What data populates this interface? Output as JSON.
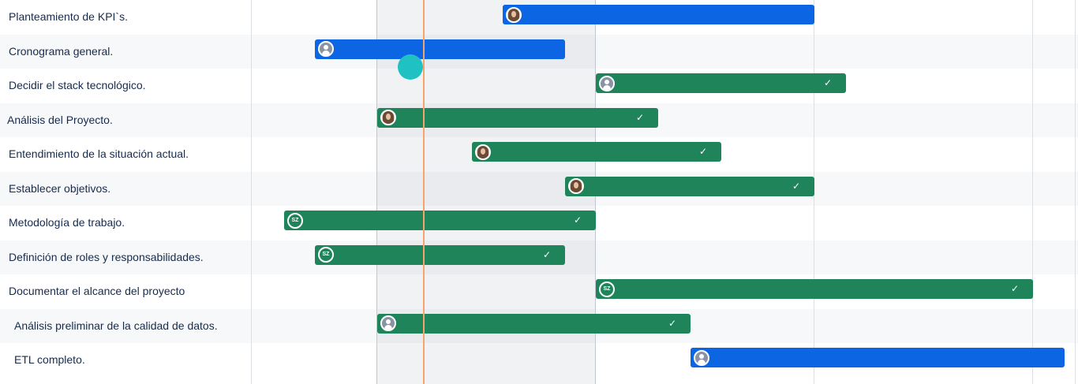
{
  "colors": {
    "in_progress": "#0c66e4",
    "done": "#1f845a",
    "today_line": "#f5a46c",
    "cursor": "#1fc1c3"
  },
  "tasks": [
    {
      "label": "Planteamiento de KPI`s.",
      "status": "in_progress",
      "assignee": "photo-avatar",
      "done": false
    },
    {
      "label": "Cronograma general.",
      "status": "in_progress",
      "assignee": "generic-avatar",
      "done": false
    },
    {
      "label": "Decidir el stack tecnológico.",
      "status": "done",
      "assignee": "generic-avatar",
      "done": true
    },
    {
      "label": "Análisis del Proyecto.",
      "status": "done",
      "assignee": "photo-avatar",
      "done": true
    },
    {
      "label": "Entendimiento de la situación actual.",
      "status": "done",
      "assignee": "photo-avatar",
      "done": true
    },
    {
      "label": "Establecer objetivos.",
      "status": "done",
      "assignee": "photo-avatar",
      "done": true
    },
    {
      "label": "Metodología de trabajo.",
      "status": "done",
      "assignee": "SZ",
      "done": true
    },
    {
      "label": "Definición de roles y responsabilidades.",
      "status": "done",
      "assignee": "SZ",
      "done": true
    },
    {
      "label": "Documentar el alcance del proyecto",
      "status": "done",
      "assignee": "SZ",
      "done": true
    },
    {
      "label": "Análisis preliminar de la calidad de datos.",
      "status": "done",
      "assignee": "generic-avatar",
      "done": true
    },
    {
      "label": "ETL completo.",
      "status": "in_progress",
      "assignee": "generic-avatar",
      "done": false
    }
  ],
  "check_icon": "✓"
}
